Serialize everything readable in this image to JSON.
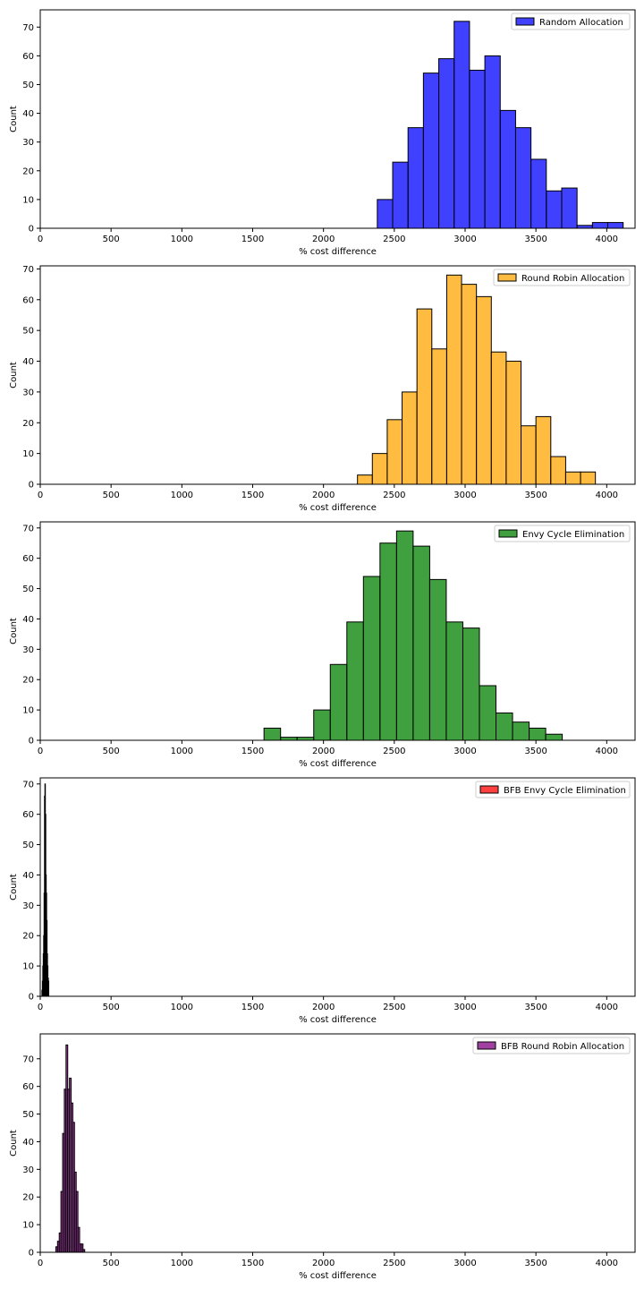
{
  "chart_data": [
    {
      "type": "bar",
      "subtype": "histogram",
      "legend": {
        "label": "Random Allocation",
        "placement": "top-right"
      },
      "color": "#0000ff",
      "xlabel": "% cost difference",
      "ylabel": "Count",
      "xlim": [
        0,
        4200
      ],
      "ylim": [
        0,
        76
      ],
      "xticks": [
        "0",
        "500",
        "1000",
        "1500",
        "2000",
        "2500",
        "3000",
        "3500",
        "4000"
      ],
      "yticks": [
        "0",
        "10",
        "20",
        "30",
        "40",
        "50",
        "60",
        "70"
      ],
      "bin_start": 2380,
      "bin_width": 108.5,
      "values": [
        10,
        23,
        35,
        54,
        59,
        72,
        55,
        60,
        41,
        35,
        24,
        13,
        14,
        1,
        2,
        2
      ]
    },
    {
      "type": "bar",
      "subtype": "histogram",
      "legend": {
        "label": "Round Robin Allocation",
        "placement": "top-right"
      },
      "color": "#ffa500",
      "xlabel": "% cost difference",
      "ylabel": "Count",
      "xlim": [
        0,
        4200
      ],
      "ylim": [
        0,
        71
      ],
      "xticks": [
        "0",
        "500",
        "1000",
        "1500",
        "2000",
        "2500",
        "3000",
        "3500",
        "4000"
      ],
      "yticks": [
        "0",
        "10",
        "20",
        "30",
        "40",
        "50",
        "60",
        "70"
      ],
      "bin_start": 2240,
      "bin_width": 105,
      "values": [
        3,
        10,
        21,
        30,
        57,
        44,
        68,
        65,
        61,
        43,
        40,
        19,
        22,
        9,
        4,
        4
      ]
    },
    {
      "type": "bar",
      "subtype": "histogram",
      "legend": {
        "label": "Envy Cycle Elimination",
        "placement": "top-right"
      },
      "color": "#008000",
      "xlabel": "% cost difference",
      "ylabel": "Count",
      "xlim": [
        0,
        4200
      ],
      "ylim": [
        0,
        72
      ],
      "xticks": [
        "0",
        "500",
        "1000",
        "1500",
        "2000",
        "2500",
        "3000",
        "3500",
        "4000"
      ],
      "yticks": [
        "0",
        "10",
        "20",
        "30",
        "40",
        "50",
        "60",
        "70"
      ],
      "bin_start": 1580,
      "bin_width": 117,
      "values": [
        4,
        1,
        1,
        10,
        25,
        39,
        54,
        65,
        69,
        64,
        53,
        39,
        37,
        18,
        9,
        6,
        4,
        2
      ]
    },
    {
      "type": "bar",
      "subtype": "histogram",
      "legend": {
        "label": "BFB Envy Cycle Elimination",
        "placement": "top-right"
      },
      "color": "#ff0000",
      "xlabel": "% cost difference",
      "ylabel": "Count",
      "xlim": [
        0,
        4200
      ],
      "ylim": [
        0,
        72
      ],
      "xticks": [
        "0",
        "500",
        "1000",
        "1500",
        "2000",
        "2500",
        "3000",
        "3500",
        "4000"
      ],
      "yticks": [
        "0",
        "10",
        "20",
        "30",
        "40",
        "50",
        "60",
        "70"
      ],
      "bin_start": 12,
      "bin_width": 3,
      "values": [
        2,
        5,
        10,
        14,
        20,
        34,
        66,
        70,
        60,
        40,
        34,
        25,
        14,
        10,
        6,
        5
      ]
    },
    {
      "type": "bar",
      "subtype": "histogram",
      "legend": {
        "label": "BFB Round Robin Allocation",
        "placement": "top-right"
      },
      "color": "#800080",
      "xlabel": "% cost difference",
      "ylabel": "Count",
      "xlim": [
        0,
        4200
      ],
      "ylim": [
        0,
        79
      ],
      "xticks": [
        "0",
        "500",
        "1000",
        "1500",
        "2000",
        "2500",
        "3000",
        "3500",
        "4000"
      ],
      "yticks": [
        "0",
        "10",
        "20",
        "30",
        "40",
        "50",
        "60",
        "70"
      ],
      "bin_start": 110,
      "bin_width": 12,
      "values": [
        2,
        4,
        7,
        22,
        43,
        59,
        75,
        59,
        63,
        54,
        47,
        29,
        22,
        9,
        3,
        3,
        1
      ]
    }
  ]
}
